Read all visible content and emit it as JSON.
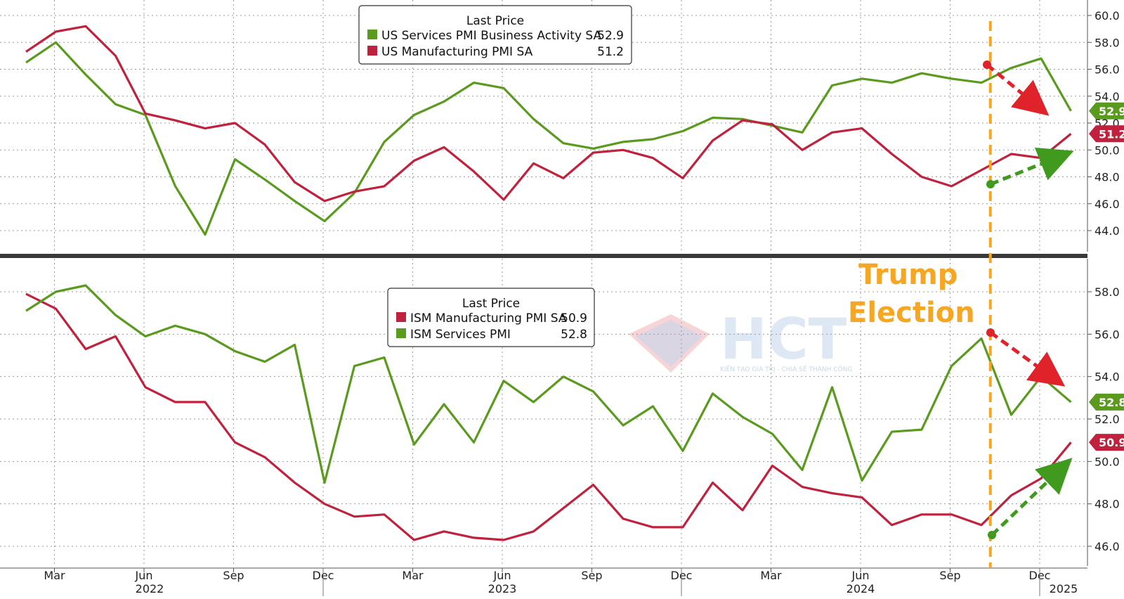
{
  "chart_data": [
    {
      "type": "line",
      "legend": {
        "title": "Last Price",
        "placement": "top-center",
        "entries": [
          {
            "name": "US Services PMI Business Activity SA",
            "value": "52.9",
            "color": "#5a9a1e"
          },
          {
            "name": "US Manufacturing PMI SA",
            "value": "51.2",
            "color": "#c0213d"
          }
        ]
      },
      "ylim": [
        42,
        60.5
      ],
      "yticks": [
        "60.0",
        "58.0",
        "56.0",
        "54.0",
        "52.0",
        "50.0",
        "48.0",
        "46.0",
        "44.0"
      ],
      "grid": true,
      "series": [
        {
          "name": "US Services PMI Business Activity SA",
          "color": "#5a9a1e",
          "last_label": "52.9",
          "values": [
            56.5,
            58.0,
            55.6,
            53.4,
            52.6,
            47.3,
            43.7,
            49.3,
            47.8,
            46.2,
            44.7,
            46.8,
            50.6,
            52.6,
            53.6,
            55.0,
            54.6,
            52.3,
            50.5,
            50.1,
            50.6,
            50.8,
            51.4,
            52.4,
            52.3,
            51.8,
            51.3,
            54.8,
            55.3,
            55.0,
            55.7,
            55.3,
            55.0,
            56.1,
            56.8,
            52.9
          ]
        },
        {
          "name": "US Manufacturing PMI SA",
          "color": "#c0213d",
          "last_label": "51.2",
          "values": [
            57.3,
            58.8,
            59.2,
            57.0,
            52.7,
            52.2,
            51.6,
            52.0,
            50.4,
            47.6,
            46.2,
            46.9,
            47.3,
            49.2,
            50.2,
            48.4,
            46.3,
            49.0,
            47.9,
            49.8,
            50.0,
            49.4,
            47.9,
            50.7,
            52.2,
            51.9,
            50.0,
            51.3,
            51.6,
            49.7,
            48.0,
            47.3,
            48.5,
            49.7,
            49.4,
            51.2
          ]
        }
      ]
    },
    {
      "type": "line",
      "legend": {
        "title": "Last Price",
        "placement": "top-center",
        "entries": [
          {
            "name": "ISM Manufacturing PMI SA",
            "value": "50.9",
            "color": "#c0213d"
          },
          {
            "name": "ISM Services PMI",
            "value": "52.8",
            "color": "#5a9a1e"
          }
        ]
      },
      "ylim": [
        45.5,
        59.5
      ],
      "yticks": [
        "58.0",
        "56.0",
        "54.0",
        "52.0",
        "50.0",
        "48.0",
        "46.0"
      ],
      "grid": true,
      "series": [
        {
          "name": "ISM Manufacturing PMI SA",
          "color": "#c0213d",
          "last_label": "50.9",
          "values": [
            57.9,
            57.2,
            55.3,
            55.9,
            53.5,
            52.8,
            52.8,
            50.9,
            50.2,
            49.0,
            48.0,
            47.4,
            47.5,
            46.3,
            46.7,
            46.4,
            46.3,
            46.7,
            47.8,
            48.9,
            47.3,
            46.9,
            46.9,
            49.0,
            47.7,
            49.8,
            48.8,
            48.5,
            48.3,
            47.0,
            47.5,
            47.5,
            47.0,
            48.4,
            49.2,
            50.9
          ]
        },
        {
          "name": "ISM Services PMI",
          "color": "#5a9a1e",
          "last_label": "52.8",
          "values": [
            57.1,
            58.0,
            58.3,
            56.9,
            55.9,
            56.4,
            56.0,
            55.2,
            54.7,
            55.5,
            49.0,
            54.5,
            54.9,
            50.8,
            52.7,
            50.9,
            53.8,
            52.8,
            54.0,
            53.3,
            51.7,
            52.6,
            50.5,
            53.2,
            52.1,
            51.3,
            49.6,
            53.5,
            49.1,
            51.4,
            51.5,
            54.5,
            55.8,
            52.2,
            54.0,
            52.8
          ]
        }
      ]
    }
  ],
  "x_axis": {
    "month_ticks": [
      {
        "label": "Mar",
        "index": 1
      },
      {
        "label": "Jun",
        "index": 4
      },
      {
        "label": "Sep",
        "index": 7
      },
      {
        "label": "Dec",
        "index": 10
      },
      {
        "label": "Mar",
        "index": 13
      },
      {
        "label": "Jun",
        "index": 16
      },
      {
        "label": "Sep",
        "index": 19
      },
      {
        "label": "Dec",
        "index": 22
      },
      {
        "label": "Mar",
        "index": 25
      },
      {
        "label": "Jun",
        "index": 28
      },
      {
        "label": "Sep",
        "index": 31
      },
      {
        "label": "Dec",
        "index": 34
      }
    ],
    "years": [
      {
        "label": "2022",
        "from": 0,
        "to": 10
      },
      {
        "label": "2023",
        "from": 10,
        "to": 22
      },
      {
        "label": "2024",
        "from": 22,
        "to": 34
      },
      {
        "label": "2025",
        "from": 34,
        "to": 35
      }
    ],
    "count": 36
  },
  "annotation": {
    "line1": "Trump",
    "line2": "Election",
    "marker_index": 32.3,
    "color": "#f5a623"
  },
  "watermark": {
    "text": "HCT",
    "subtitle": "KIẾN TẠO GIÁ TRỊ - CHIA SẺ THÀNH CÔNG"
  },
  "colors": {
    "green": "#5a9a1e",
    "red": "#c0213d",
    "dotted_grid": "#9a9a9a",
    "panel_divider": "#3a3a3a"
  }
}
